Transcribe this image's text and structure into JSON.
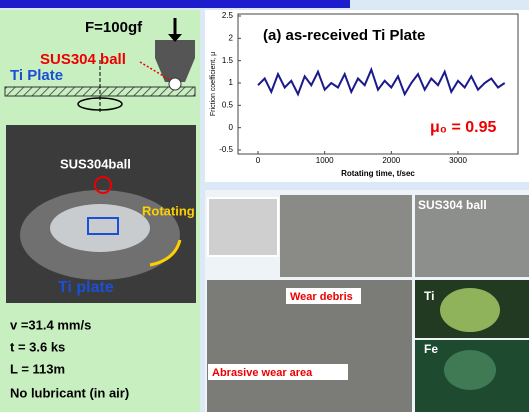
{
  "chart_data": {
    "type": "line",
    "title": "(a) as-received Ti Plate",
    "y_label": "Friction coefficient, μ",
    "x_label": "Rotating time, t/sec",
    "annotation": "μ₀ = 0.95",
    "x": [
      0,
      100,
      200,
      300,
      400,
      500,
      600,
      700,
      800,
      900,
      1000,
      1100,
      1200,
      1300,
      1400,
      1500,
      1600,
      1700,
      1800,
      1900,
      2000,
      2100,
      2200,
      2300,
      2400,
      2500,
      2600,
      2700,
      2800,
      2900,
      3000,
      3100,
      3200,
      3300,
      3400,
      3500,
      3600,
      3700
    ],
    "series": [
      {
        "color": "#1a1a8c",
        "values": [
          0.95,
          1.1,
          0.8,
          1.2,
          0.9,
          1.05,
          0.75,
          1.15,
          0.95,
          1.25,
          0.85,
          1.0,
          0.9,
          1.2,
          0.8,
          1.1,
          0.95,
          1.3,
          0.85,
          1.05,
          0.9,
          1.15,
          0.75,
          1.0,
          1.2,
          0.85,
          1.1,
          0.95,
          1.25,
          0.8,
          1.05,
          0.9,
          1.15,
          0.85,
          1.0,
          1.1,
          0.9,
          1.0
        ]
      }
    ],
    "xlim": [
      -300,
      3900
    ],
    "xticks": [
      0,
      1000,
      2000,
      3000
    ],
    "ylim": [
      -0.5,
      2.5
    ],
    "yticks": [
      -0.5,
      0,
      0.5,
      1,
      1.5,
      2,
      2.5
    ]
  },
  "schematic": {
    "force": "F=100gf",
    "ball": "SUS304 ball",
    "plate": "Ti Plate"
  },
  "photo": {
    "ball": "SUS304ball",
    "rotating": "Rotating",
    "plate": "Ti plate"
  },
  "conditions": [
    "v =31.4 mm/s",
    "t = 3.6 ks",
    "L = 113m",
    "No lubricant (in air)"
  ],
  "sem": {
    "debris": "Wear debris",
    "abrasive": "Abrasive wear area",
    "ball": "SUS304 ball",
    "ti": "Ti",
    "fe": "Fe"
  }
}
